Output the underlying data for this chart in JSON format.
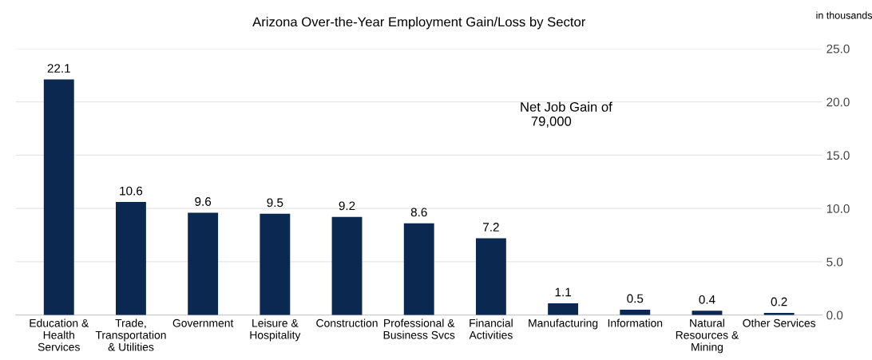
{
  "chart_data": {
    "type": "bar",
    "title": "Arizona Over-the-Year Employment Gain/Loss by Sector",
    "ylabel": "in thousands",
    "categories": [
      "Education &\nHealth\nServices",
      "Trade,\nTransportation\n& Utilities",
      "Government",
      "Leisure &\nHospitality",
      "Construction",
      "Professional &\nBusiness Svcs",
      "Financial\nActivities",
      "Manufacturing",
      "Information",
      "Natural\nResources &\nMining",
      "Other Services"
    ],
    "values": [
      22.1,
      10.6,
      9.6,
      9.5,
      9.2,
      8.6,
      7.2,
      1.1,
      0.5,
      0.4,
      0.2
    ],
    "value_labels": [
      "22.1",
      "10.6",
      "9.6",
      "9.5",
      "9.2",
      "8.6",
      "7.2",
      "1.1",
      "0.5",
      "0.4",
      "0.2"
    ],
    "color": "#0b2850",
    "ylim": [
      0,
      25
    ],
    "yticks": [
      {
        "value": 0,
        "label": "0.0"
      },
      {
        "value": 5,
        "label": "5.0"
      },
      {
        "value": 10,
        "label": "10.0"
      },
      {
        "value": 15,
        "label": "15.0"
      },
      {
        "value": 20,
        "label": "20.0"
      },
      {
        "value": 25,
        "label": "25.0"
      }
    ],
    "grid": "y",
    "legend": false,
    "annotations": [
      "Net Job Gain of\n   79,000"
    ]
  }
}
